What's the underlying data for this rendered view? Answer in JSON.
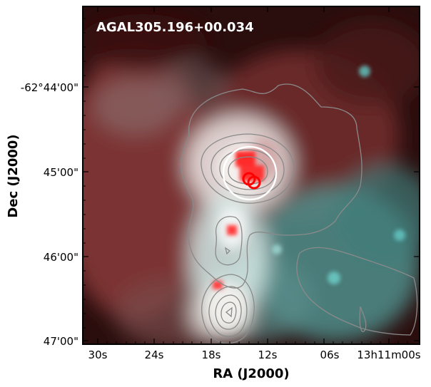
{
  "image": {
    "source_label": "AGAL305.196+00.034",
    "x_axis": {
      "title": "RA (J2000)",
      "tick_labels": [
        "30s",
        "24s",
        "18s",
        "12s",
        "06s",
        "13h11m00s"
      ]
    },
    "y_axis": {
      "title": "Dec (J2000)",
      "tick_labels": [
        "-62°44'00\"",
        "45'00\"",
        "46'00\"",
        "47'00\""
      ]
    },
    "colors": {
      "background_dark": "#2a0d0d",
      "red_emission": "#a85050",
      "cyan_emission": "#5fa8a4",
      "white_core": "#f2f2ee",
      "contour": "#8a8a8a",
      "marker_white": "#ffffff",
      "marker_red": "#ff0000"
    },
    "markers": [
      "large-white-circle",
      "small-red-circle",
      "small-red-circle"
    ]
  }
}
